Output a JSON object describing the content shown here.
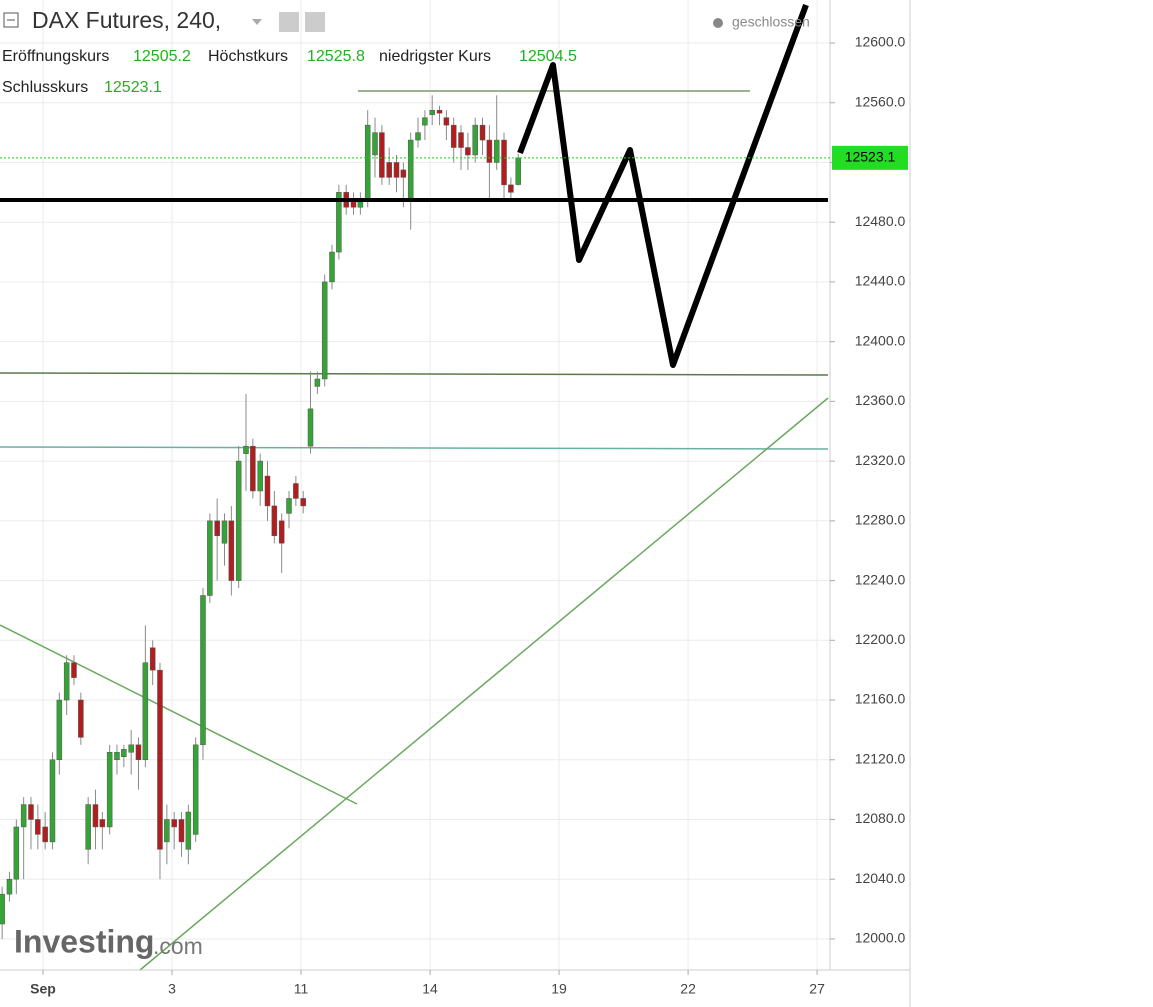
{
  "chart_data": {
    "type": "candlestick",
    "title": "DAX Futures, 240,",
    "status": "geschlossen",
    "watermark": "Investing",
    "watermark_suffix": ".com",
    "open_label": "Eröffnungskurs",
    "high_label": "Höchstkurs",
    "low_label": "niedrigster Kurs",
    "close_label": "Schlusskurs",
    "up_color": "#36a336",
    "down_color": "#b01f1f",
    "grid": true,
    "xlim": [
      -1,
      18.3
    ],
    "ylim": [
      11979.2,
      12628.8
    ],
    "xticks": [
      {
        "value": 0,
        "label": "Sep"
      },
      3,
      {
        "value": 6,
        "label": "11"
      },
      {
        "value": 9,
        "label": "14"
      },
      {
        "value": 12,
        "label": "19"
      },
      {
        "value": 15,
        "label": "22"
      },
      {
        "value": 18,
        "label": "27"
      }
    ],
    "yticks": [
      {
        "value": 12000,
        "label": "12000.0"
      },
      {
        "value": 12040,
        "label": "12040.0"
      },
      {
        "value": 12080,
        "label": "12080.0"
      },
      {
        "value": 12120,
        "label": "12120.0"
      },
      {
        "value": 12160,
        "label": "12160.0"
      },
      {
        "value": 12200,
        "label": "12200.0"
      },
      {
        "value": 12240,
        "label": "12240.0"
      },
      {
        "value": 12280,
        "label": "12280.0"
      },
      {
        "value": 12320,
        "label": "12320.0"
      },
      {
        "value": 12360,
        "label": "12360.0"
      },
      {
        "value": 12400,
        "label": "12400.0"
      },
      {
        "value": 12440,
        "label": "12440.0"
      },
      {
        "value": 12480,
        "label": "12480.0"
      },
      {
        "value": 12520,
        "label": "12520.0"
      },
      {
        "value": 12560,
        "label": "12560.0"
      },
      {
        "value": 12600,
        "label": "12600.0"
      }
    ],
    "x": [
      -0.95,
      -0.78,
      -0.62,
      -0.45,
      -0.28,
      -0.12,
      0.05,
      0.22,
      0.38,
      0.55,
      0.72,
      0.88,
      1.05,
      1.22,
      1.38,
      1.55,
      1.72,
      1.88,
      2.05,
      2.22,
      2.38,
      2.55,
      2.72,
      2.88,
      3.05,
      3.22,
      3.38,
      3.55,
      3.72,
      3.88,
      4.05,
      4.22,
      4.38,
      4.55,
      4.72,
      4.88,
      5.05,
      5.22,
      5.38,
      5.55,
      5.72,
      5.88,
      6.05,
      6.22,
      6.38,
      6.55,
      6.72,
      6.88,
      7.05,
      7.22,
      7.38,
      7.55,
      7.72,
      7.88,
      8.05,
      8.22,
      8.38,
      8.55,
      8.72,
      8.88,
      9.05,
      9.22,
      9.38,
      9.55,
      9.72,
      9.88,
      10.05,
      10.22,
      10.38,
      10.55,
      10.72,
      10.88,
      11.05
    ],
    "open": [
      12010,
      12030,
      12040,
      12075,
      12090,
      12080,
      12075,
      12065,
      12120,
      12160,
      12185,
      12160,
      12060,
      12090,
      12080,
      12075,
      12120,
      12122,
      12125,
      12130,
      12120,
      12195,
      12180,
      12065,
      12080,
      12080,
      12060,
      12070,
      12130,
      12230,
      12280,
      12265,
      12280,
      12240,
      12325,
      12330,
      12300,
      12310,
      12290,
      12280,
      12285,
      12305,
      12295,
      12330,
      12370,
      12375,
      12440,
      12460,
      12500,
      12495,
      12490,
      12495,
      12525,
      12540,
      12520,
      12520,
      12515,
      12495,
      12535,
      12545,
      12552,
      12555,
      12550,
      12545,
      12540,
      12530,
      12525,
      12545,
      12535,
      12520,
      12535,
      12505,
      12505.2
    ],
    "high": [
      12035,
      12045,
      12080,
      12095,
      12095,
      12090,
      12085,
      12125,
      12165,
      12190,
      12190,
      12165,
      12095,
      12100,
      12085,
      12130,
      12130,
      12130,
      12140,
      12135,
      12210,
      12200,
      12185,
      12090,
      12085,
      12085,
      12090,
      12135,
      12235,
      12285,
      12295,
      12285,
      12290,
      12330,
      12365,
      12335,
      12325,
      12320,
      12300,
      12285,
      12300,
      12310,
      12300,
      12380,
      12380,
      12445,
      12465,
      12505,
      12505,
      12500,
      12500,
      12555,
      12550,
      12545,
      12530,
      12525,
      12520,
      12540,
      12550,
      12555,
      12565,
      12558,
      12555,
      12550,
      12545,
      12540,
      12550,
      12550,
      12545,
      12565,
      12540,
      12510,
      12525.8
    ],
    "low": [
      12000,
      12025,
      12030,
      12040,
      12060,
      12060,
      12060,
      12060,
      12110,
      12150,
      12170,
      12130,
      12050,
      12060,
      12060,
      12070,
      12110,
      12115,
      12110,
      12100,
      12115,
      12170,
      12040,
      12050,
      12060,
      12055,
      12050,
      12065,
      12120,
      12225,
      12240,
      12250,
      12230,
      12235,
      12300,
      12295,
      12290,
      12280,
      12265,
      12245,
      12275,
      12290,
      12285,
      12325,
      12365,
      12370,
      12435,
      12455,
      12485,
      12485,
      12485,
      12490,
      12510,
      12505,
      12505,
      12500,
      12490,
      12475,
      12530,
      12535,
      12545,
      12545,
      12535,
      12520,
      12515,
      12515,
      12520,
      12525,
      12495,
      12515,
      12495,
      12495,
      12504.5
    ],
    "close": [
      12030,
      12040,
      12075,
      12090,
      12080,
      12070,
      12065,
      12120,
      12160,
      12185,
      12175,
      12135,
      12090,
      12075,
      12075,
      12125,
      12125,
      12127,
      12130,
      12120,
      12185,
      12180,
      12060,
      12080,
      12075,
      12065,
      12085,
      12130,
      12230,
      12280,
      12270,
      12280,
      12240,
      12320,
      12330,
      12300,
      12320,
      12290,
      12270,
      12265,
      12295,
      12295,
      12290,
      12355,
      12375,
      12440,
      12460,
      12500,
      12490,
      12490,
      12495,
      12545,
      12540,
      12510,
      12510,
      12510,
      12510,
      12535,
      12540,
      12550,
      12555,
      12553,
      12545,
      12530,
      12530,
      12525,
      12545,
      12535,
      12520,
      12535,
      12505,
      12500,
      12523.1
    ]
  }
}
